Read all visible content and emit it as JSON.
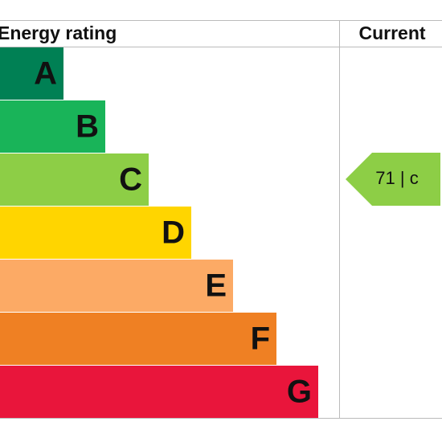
{
  "header": {
    "rating": "Energy rating",
    "current": "Current"
  },
  "bands": [
    "A",
    "B",
    "C",
    "D",
    "E",
    "F",
    "G"
  ],
  "current": {
    "label": "71 | c"
  }
}
